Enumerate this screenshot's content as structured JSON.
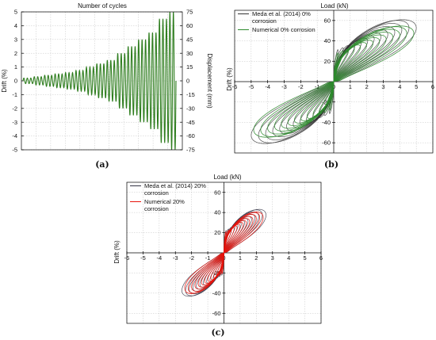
{
  "chart_data": [
    {
      "id": "a",
      "type": "line",
      "panel_label": "(a)",
      "title": "Number of cycles",
      "ylabel": "Drift (%)",
      "y2label": "Displacement (mm)",
      "ylim": [
        -5,
        5
      ],
      "y2lim": [
        -75,
        75
      ],
      "y_ticks": [
        "5",
        "4",
        "3",
        "2",
        "1",
        "0",
        "-1",
        "-2",
        "-3",
        "-4",
        "-5"
      ],
      "y2_ticks": [
        "75",
        "60",
        "45",
        "30",
        "15",
        "0",
        "-15",
        "-30",
        "-45",
        "-60",
        "-75"
      ],
      "grid": true,
      "color": "#2e7d1e",
      "drift_levels": [
        0.2,
        0.2,
        0.2,
        0.3,
        0.3,
        0.3,
        0.4,
        0.4,
        0.4,
        0.5,
        0.5,
        0.5,
        0.6,
        0.6,
        0.6,
        0.75,
        0.75,
        0.75,
        1.0,
        1.0,
        1.0,
        1.25,
        1.25,
        1.25,
        1.5,
        1.5,
        1.5,
        2.0,
        2.0,
        2.0,
        2.5,
        2.5,
        2.5,
        3.0,
        3.0,
        3.0,
        3.5,
        3.5,
        3.5,
        4.5,
        4.5,
        4.5,
        5.0,
        5.0
      ]
    },
    {
      "id": "b",
      "type": "line",
      "panel_label": "(b)",
      "title": "Load (kN)",
      "ylabel": "Drift (%)",
      "xlim": [
        -6,
        6
      ],
      "ylim": [
        -70,
        70
      ],
      "x_ticks": [
        "-6",
        "-5",
        "-4",
        "-3",
        "-2",
        "-1",
        "0",
        "1",
        "2",
        "3",
        "4",
        "5",
        "6"
      ],
      "y_ticks": [
        "60",
        "40",
        "20",
        "-20",
        "-40",
        "-60"
      ],
      "grid": true,
      "legend_position": "top-left",
      "series": [
        {
          "name": "Meda et al. (2014) 0%\ncorrosion",
          "color": "#333333",
          "max_drift": 5.0,
          "max_load": 62
        },
        {
          "name": "Numerical 0% corrosion",
          "color": "#2e8b2e",
          "max_drift": 5.0,
          "max_load": 58
        }
      ]
    },
    {
      "id": "c",
      "type": "line",
      "panel_label": "(c)",
      "title": "Load (kN)",
      "ylabel": "Drift (%)",
      "xlim": [
        -6,
        6
      ],
      "ylim": [
        -70,
        70
      ],
      "x_ticks": [
        "-6",
        "-5",
        "-4",
        "-3",
        "-2",
        "-1",
        "0",
        "1",
        "2",
        "3",
        "4",
        "5",
        "6"
      ],
      "y_ticks": [
        "60",
        "40",
        "20",
        "-20",
        "-40",
        "-60"
      ],
      "grid": true,
      "legend_position": "top-left",
      "series": [
        {
          "name": "Meda et al. (2014) 20%\ncorrosion",
          "color": "#333344",
          "max_drift": 2.6,
          "max_load": 44
        },
        {
          "name": "Numerical 20%\ncorrosion",
          "color": "#e8140c",
          "max_drift": 2.5,
          "max_load": 43
        }
      ]
    }
  ]
}
